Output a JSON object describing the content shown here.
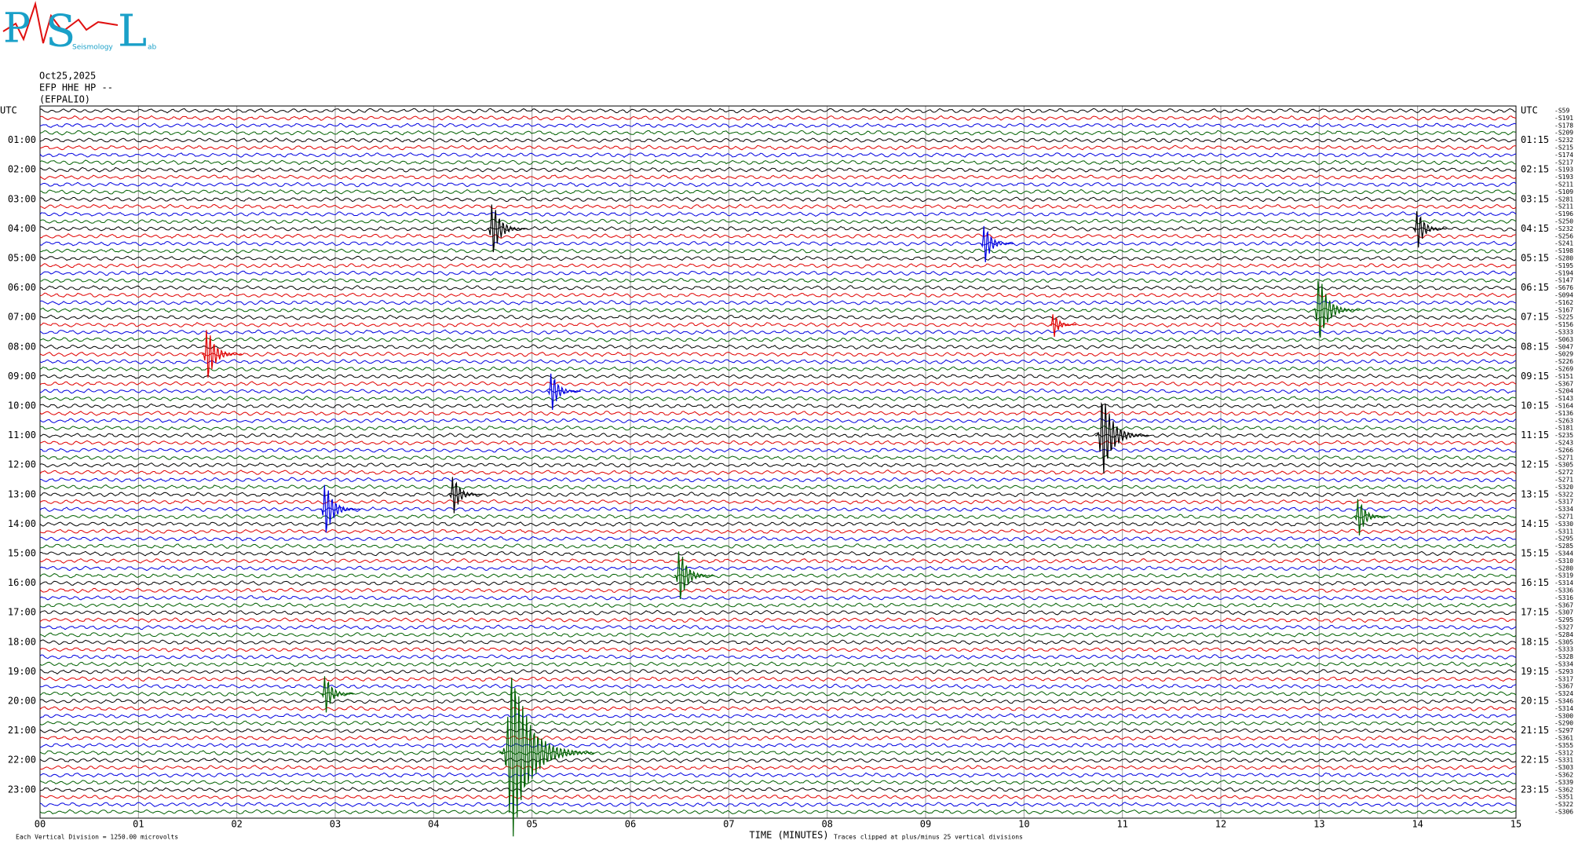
{
  "header": {
    "logo": {
      "letters": [
        "P",
        "S",
        "L"
      ],
      "words": [
        "Seismology",
        "ab"
      ]
    },
    "date": "Oct25,2025",
    "channel": "EFP HHE HP --",
    "station": "(EFPALIO)"
  },
  "chart_data": {
    "type": "helicorder",
    "xlabel": "TIME (MINUTES)",
    "xlim": [
      0,
      15
    ],
    "xticks": [
      {
        "value": 0,
        "label": "00"
      },
      {
        "value": 1,
        "label": "01"
      },
      {
        "value": 2,
        "label": "02"
      },
      {
        "value": 3,
        "label": "03"
      },
      {
        "value": 4,
        "label": "04"
      },
      {
        "value": 5,
        "label": "05"
      },
      {
        "value": 6,
        "label": "06"
      },
      {
        "value": 7,
        "label": "07"
      },
      {
        "value": 8,
        "label": "08"
      },
      {
        "value": 9,
        "label": "09"
      },
      {
        "value": 10,
        "label": "10"
      },
      {
        "value": 11,
        "label": "11"
      },
      {
        "value": 12,
        "label": "12"
      },
      {
        "value": 13,
        "label": "13"
      },
      {
        "value": 14,
        "label": "14"
      },
      {
        "value": 15,
        "label": "15"
      }
    ],
    "left_labels": [
      "UTC",
      "01:00",
      "02:00",
      "03:00",
      "04:00",
      "05:00",
      "06:00",
      "07:00",
      "08:00",
      "09:00",
      "10:00",
      "11:00",
      "12:00",
      "13:00",
      "14:00",
      "15:00",
      "16:00",
      "17:00",
      "18:00",
      "19:00",
      "20:00",
      "21:00",
      "22:00",
      "23:00"
    ],
    "right_labels": [
      "UTC",
      "01:15",
      "02:15",
      "03:15",
      "04:15",
      "05:15",
      "06:15",
      "07:15",
      "08:15",
      "09:15",
      "10:15",
      "11:15",
      "12:15",
      "13:15",
      "14:15",
      "15:15",
      "16:15",
      "17:15",
      "18:15",
      "19:15",
      "20:15",
      "21:15",
      "22:15",
      "23:15"
    ],
    "trace_labels": [
      "-S59",
      "-S191",
      "-S178",
      "-S209",
      "-S232",
      "-S215",
      "-S174",
      "-S217",
      "-S193",
      "-S193",
      "-S211",
      "-S109",
      "-S281",
      "-S211",
      "-S196",
      "-S250",
      "-S232",
      "-S256",
      "-S241",
      "-S198",
      "-S280",
      "-S195",
      "-S194",
      "-S147",
      "-S676",
      "-S094",
      "-S162",
      "-S167",
      "-S225",
      "-S156",
      "-S333",
      "-S063",
      "-S047",
      "-S029",
      "-S226",
      "-S269",
      "-S151",
      "-S367",
      "-S204",
      "-S143",
      "-S164",
      "-S136",
      "-S263",
      "-S181",
      "-S235",
      "-S243",
      "-S266",
      "-S271",
      "-S305",
      "-S272",
      "-S271",
      "-S320",
      "-S322",
      "-S317",
      "-S334",
      "-S271",
      "-S330",
      "-S311",
      "-S295",
      "-S285",
      "-S344",
      "-S310",
      "-S280",
      "-S319",
      "-S314",
      "-S336",
      "-S316",
      "-S367",
      "-S307",
      "-S295",
      "-S327",
      "-S284",
      "-S305",
      "-S333",
      "-S328",
      "-S334",
      "-S293",
      "-S317",
      "-S367",
      "-S324",
      "-S346",
      "-S314",
      "-S300",
      "-S290",
      "-S297",
      "-S361",
      "-S355",
      "-S312",
      "-S331",
      "-S303",
      "-S362",
      "-S339",
      "-S362",
      "-S351",
      "-S322",
      "-S306"
    ],
    "trace_colors": [
      "#000000",
      "#e00000",
      "#0000e0",
      "#006000"
    ],
    "grid": true,
    "events": [
      {
        "trace": 87,
        "minute": 4.8,
        "amplitude": 12
      },
      {
        "trace": 16,
        "minute": 4.6,
        "amplitude": 4
      },
      {
        "trace": 18,
        "minute": 9.6,
        "amplitude": 3
      },
      {
        "trace": 16,
        "minute": 14.0,
        "amplitude": 3
      },
      {
        "trace": 27,
        "minute": 13.0,
        "amplitude": 5
      },
      {
        "trace": 33,
        "minute": 1.7,
        "amplitude": 4
      },
      {
        "trace": 44,
        "minute": 10.8,
        "amplitude": 6
      },
      {
        "trace": 63,
        "minute": 6.5,
        "amplitude": 4
      },
      {
        "trace": 29,
        "minute": 10.3,
        "amplitude": 2
      },
      {
        "trace": 38,
        "minute": 5.2,
        "amplitude": 3
      },
      {
        "trace": 52,
        "minute": 4.2,
        "amplitude": 3
      },
      {
        "trace": 54,
        "minute": 2.9,
        "amplitude": 4
      },
      {
        "trace": 55,
        "minute": 13.4,
        "amplitude": 3
      },
      {
        "trace": 79,
        "minute": 2.9,
        "amplitude": 3
      }
    ],
    "notes": {
      "scale": "Each Vertical Division = 1250.00 microvolts",
      "clip": "Traces clipped at plus/minus 25 vertical divisions"
    }
  }
}
